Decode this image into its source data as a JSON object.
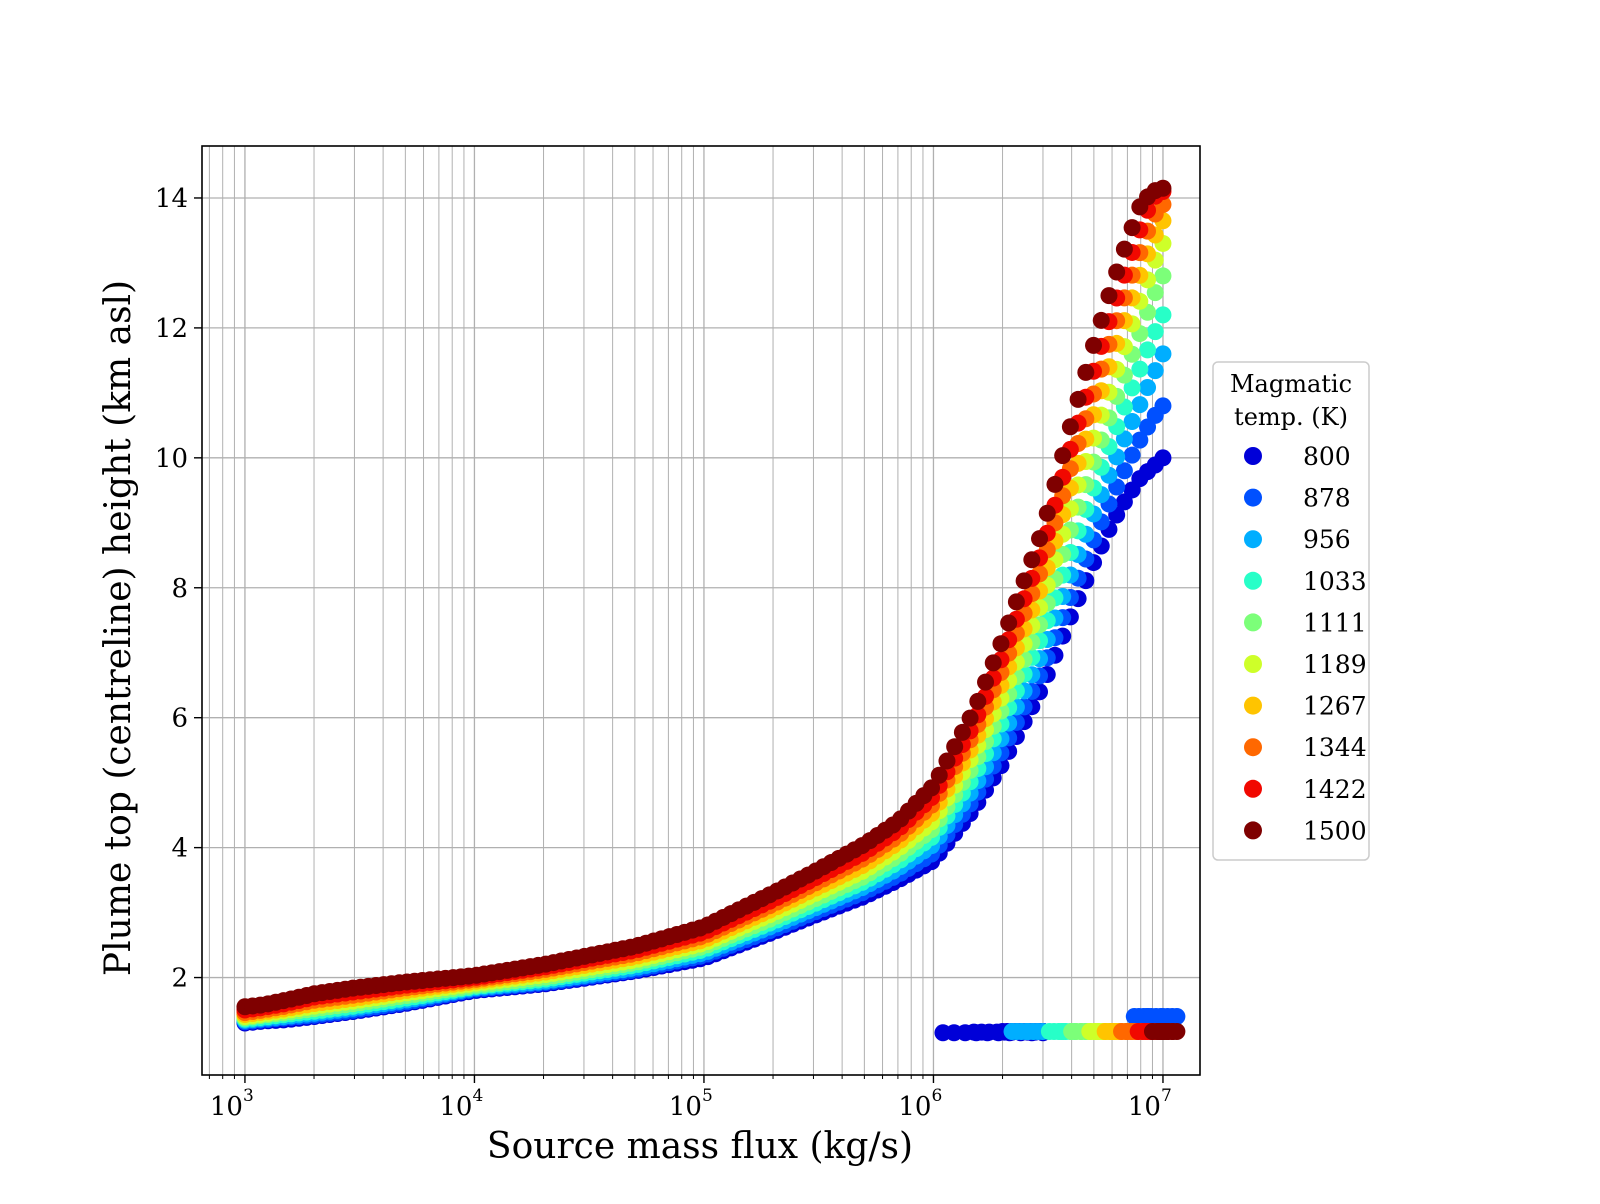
{
  "chart_data": {
    "type": "scatter",
    "title": "",
    "xlabel": "Source mass flux (kg/s)",
    "ylabel": "Plume top (centreline) height (km asl)",
    "xscale": "log",
    "xlim": [
      650,
      14500000
    ],
    "ylim": [
      0.5,
      14.8
    ],
    "grid": true,
    "grid_minor_x": true,
    "x_ticks": [
      {
        "value": 1000,
        "base": "10",
        "exp": "3"
      },
      {
        "value": 10000,
        "base": "10",
        "exp": "4"
      },
      {
        "value": 100000,
        "base": "10",
        "exp": "5"
      },
      {
        "value": 1000000,
        "base": "10",
        "exp": "6"
      },
      {
        "value": 10000000,
        "base": "10",
        "exp": "7"
      }
    ],
    "y_ticks": [
      {
        "value": 2,
        "label": "2"
      },
      {
        "value": 4,
        "label": "4"
      },
      {
        "value": 6,
        "label": "6"
      },
      {
        "value": 8,
        "label": "8"
      },
      {
        "value": 10,
        "label": "10"
      },
      {
        "value": 12,
        "label": "12"
      },
      {
        "value": 14,
        "label": "14"
      }
    ],
    "legend": {
      "title_lines": [
        "Magmatic",
        "temp. (K)"
      ],
      "placement": "outside-right"
    },
    "x_grid": [
      1000,
      1200,
      1500,
      2000,
      3000,
      5000,
      10000,
      20000,
      50000,
      100000,
      200000,
      300000,
      500000,
      700000,
      1000000,
      1500000,
      2000000,
      3000000,
      4000000,
      5000000,
      6000000,
      7000000,
      8000000,
      9000000,
      10000000
    ],
    "series": [
      {
        "name": "800",
        "color": "#0000d8",
        "y": [
          1.3,
          1.33,
          1.35,
          1.4,
          1.48,
          1.6,
          1.8,
          1.9,
          2.1,
          2.3,
          2.7,
          2.95,
          3.25,
          3.5,
          3.8,
          4.6,
          5.3,
          6.5,
          7.6,
          8.4,
          9.0,
          9.4,
          9.7,
          9.85,
          10.0
        ],
        "lower": {
          "x": [
            1100000,
            1500000,
            2000000,
            3000000
          ],
          "y": [
            1.15,
            1.16,
            1.17,
            1.17
          ]
        }
      },
      {
        "name": "878",
        "color": "#0050ff",
        "y": [
          1.32,
          1.35,
          1.38,
          1.42,
          1.5,
          1.62,
          1.82,
          1.92,
          2.12,
          2.34,
          2.74,
          3.0,
          3.32,
          3.58,
          3.92,
          4.75,
          5.5,
          6.75,
          7.9,
          8.75,
          9.4,
          9.9,
          10.3,
          10.6,
          10.8
        ],
        "lower": {
          "x": [
            7500000,
            8500000,
            10000000
          ],
          "y": [
            1.4,
            1.4,
            1.4
          ]
        }
      },
      {
        "name": "956",
        "color": "#00aeff",
        "y": [
          1.34,
          1.37,
          1.4,
          1.45,
          1.53,
          1.65,
          1.84,
          1.94,
          2.15,
          2.38,
          2.8,
          3.06,
          3.4,
          3.68,
          4.05,
          4.92,
          5.72,
          7.02,
          8.25,
          9.15,
          9.85,
          10.4,
          10.85,
          11.25,
          11.6
        ],
        "lower": {
          "x": [
            2200000,
            2600000
          ],
          "y": [
            1.17,
            1.17
          ]
        }
      },
      {
        "name": "1033",
        "color": "#27ffc8",
        "y": [
          1.36,
          1.39,
          1.43,
          1.48,
          1.56,
          1.68,
          1.86,
          1.97,
          2.19,
          2.43,
          2.86,
          3.13,
          3.48,
          3.78,
          4.18,
          5.1,
          5.95,
          7.3,
          8.6,
          9.55,
          10.3,
          10.9,
          11.4,
          11.85,
          12.2
        ],
        "lower": {
          "x": [
            3200000,
            3600000
          ],
          "y": [
            1.17,
            1.17
          ]
        }
      },
      {
        "name": "1111",
        "color": "#7cff79",
        "y": [
          1.38,
          1.42,
          1.46,
          1.52,
          1.6,
          1.72,
          1.88,
          2.0,
          2.23,
          2.48,
          2.92,
          3.2,
          3.56,
          3.88,
          4.3,
          5.28,
          6.15,
          7.55,
          8.95,
          9.95,
          10.75,
          11.4,
          11.95,
          12.45,
          12.8
        ],
        "lower": {
          "x": [
            4000000,
            4400000
          ],
          "y": [
            1.17,
            1.17
          ]
        }
      },
      {
        "name": "1189",
        "color": "#ceff29",
        "y": [
          1.4,
          1.44,
          1.49,
          1.56,
          1.64,
          1.76,
          1.91,
          2.04,
          2.27,
          2.53,
          2.99,
          3.28,
          3.65,
          3.98,
          4.42,
          5.45,
          6.35,
          7.82,
          9.28,
          10.32,
          11.15,
          11.85,
          12.45,
          12.95,
          13.3
        ],
        "lower": {
          "x": [
            4800000,
            5200000
          ],
          "y": [
            1.17,
            1.17
          ]
        }
      },
      {
        "name": "1267",
        "color": "#ffc400",
        "y": [
          1.43,
          1.47,
          1.52,
          1.6,
          1.68,
          1.8,
          1.94,
          2.08,
          2.32,
          2.58,
          3.06,
          3.36,
          3.74,
          4.08,
          4.55,
          5.6,
          6.55,
          8.08,
          9.6,
          10.68,
          11.55,
          12.25,
          12.85,
          13.35,
          13.65
        ],
        "lower": {
          "x": [
            5600000,
            6000000
          ],
          "y": [
            1.17,
            1.17
          ]
        }
      },
      {
        "name": "1344",
        "color": "#ff6800",
        "y": [
          1.46,
          1.5,
          1.56,
          1.65,
          1.73,
          1.84,
          1.97,
          2.12,
          2.37,
          2.64,
          3.13,
          3.44,
          3.84,
          4.18,
          4.68,
          5.76,
          6.75,
          8.35,
          9.9,
          11.0,
          11.9,
          12.6,
          13.2,
          13.7,
          13.9
        ],
        "lower": {
          "x": [
            6600000,
            7000000
          ],
          "y": [
            1.17,
            1.17
          ]
        }
      },
      {
        "name": "1422",
        "color": "#f10800",
        "y": [
          1.5,
          1.54,
          1.6,
          1.7,
          1.78,
          1.88,
          2.0,
          2.16,
          2.42,
          2.7,
          3.2,
          3.52,
          3.93,
          4.28,
          4.8,
          5.9,
          6.95,
          8.6,
          10.2,
          11.35,
          12.25,
          12.95,
          13.55,
          14.0,
          14.1
        ],
        "lower": {
          "x": [
            7800000,
            8400000
          ],
          "y": [
            1.17,
            1.17
          ]
        }
      },
      {
        "name": "1500",
        "color": "#7f0000",
        "y": [
          1.55,
          1.58,
          1.65,
          1.75,
          1.84,
          1.93,
          2.03,
          2.2,
          2.48,
          2.78,
          3.3,
          3.62,
          4.05,
          4.4,
          4.95,
          6.1,
          7.2,
          8.9,
          10.55,
          11.75,
          12.65,
          13.35,
          13.9,
          14.1,
          14.15
        ],
        "lower": {
          "x": [
            9000000,
            9600000,
            10000000
          ],
          "y": [
            1.17,
            1.17,
            1.17
          ]
        }
      }
    ]
  }
}
